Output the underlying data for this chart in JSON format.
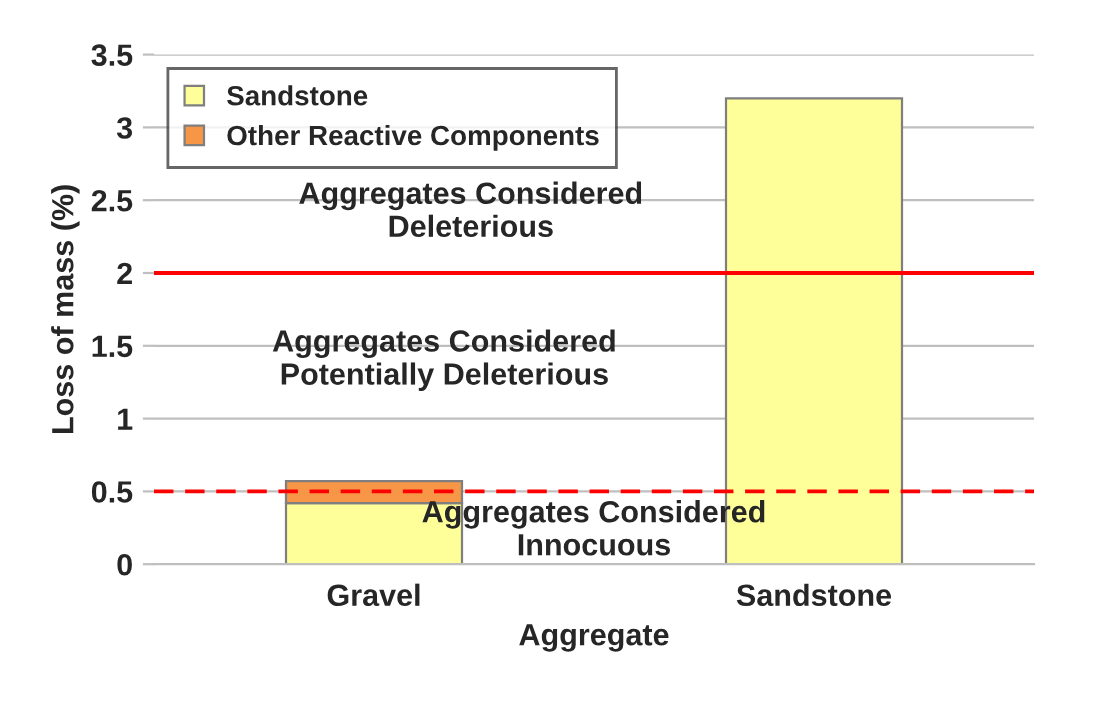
{
  "chart_data": {
    "type": "bar",
    "stacked": true,
    "xlabel": "Aggregate",
    "ylabel": "Loss of mass (%)",
    "categories": [
      "Gravel",
      "Sandstone"
    ],
    "series": [
      {
        "name": "Sandstone",
        "color": "#ffff99",
        "values": [
          0.42,
          3.2
        ]
      },
      {
        "name": "Other Reactive Components",
        "color": "#f79646",
        "values": [
          0.15,
          null
        ]
      }
    ],
    "ylim": [
      0,
      3.5
    ],
    "yticks": [
      0,
      0.5,
      1,
      1.5,
      2,
      2.5,
      3,
      3.5
    ],
    "grid": "y",
    "legend": "top left",
    "ref_lines": [
      {
        "axis": "y",
        "value": 2,
        "color": "#ff0000",
        "line_style": "solid"
      },
      {
        "axis": "y",
        "value": 0.5,
        "color": "#ff0000",
        "line_style": "dashed"
      }
    ],
    "annotations": [
      "Aggregates Considered\nDeleterious",
      "Aggregates Considered\nPotentially Deleterious",
      "Aggregates Considered\nInnocuous"
    ]
  }
}
